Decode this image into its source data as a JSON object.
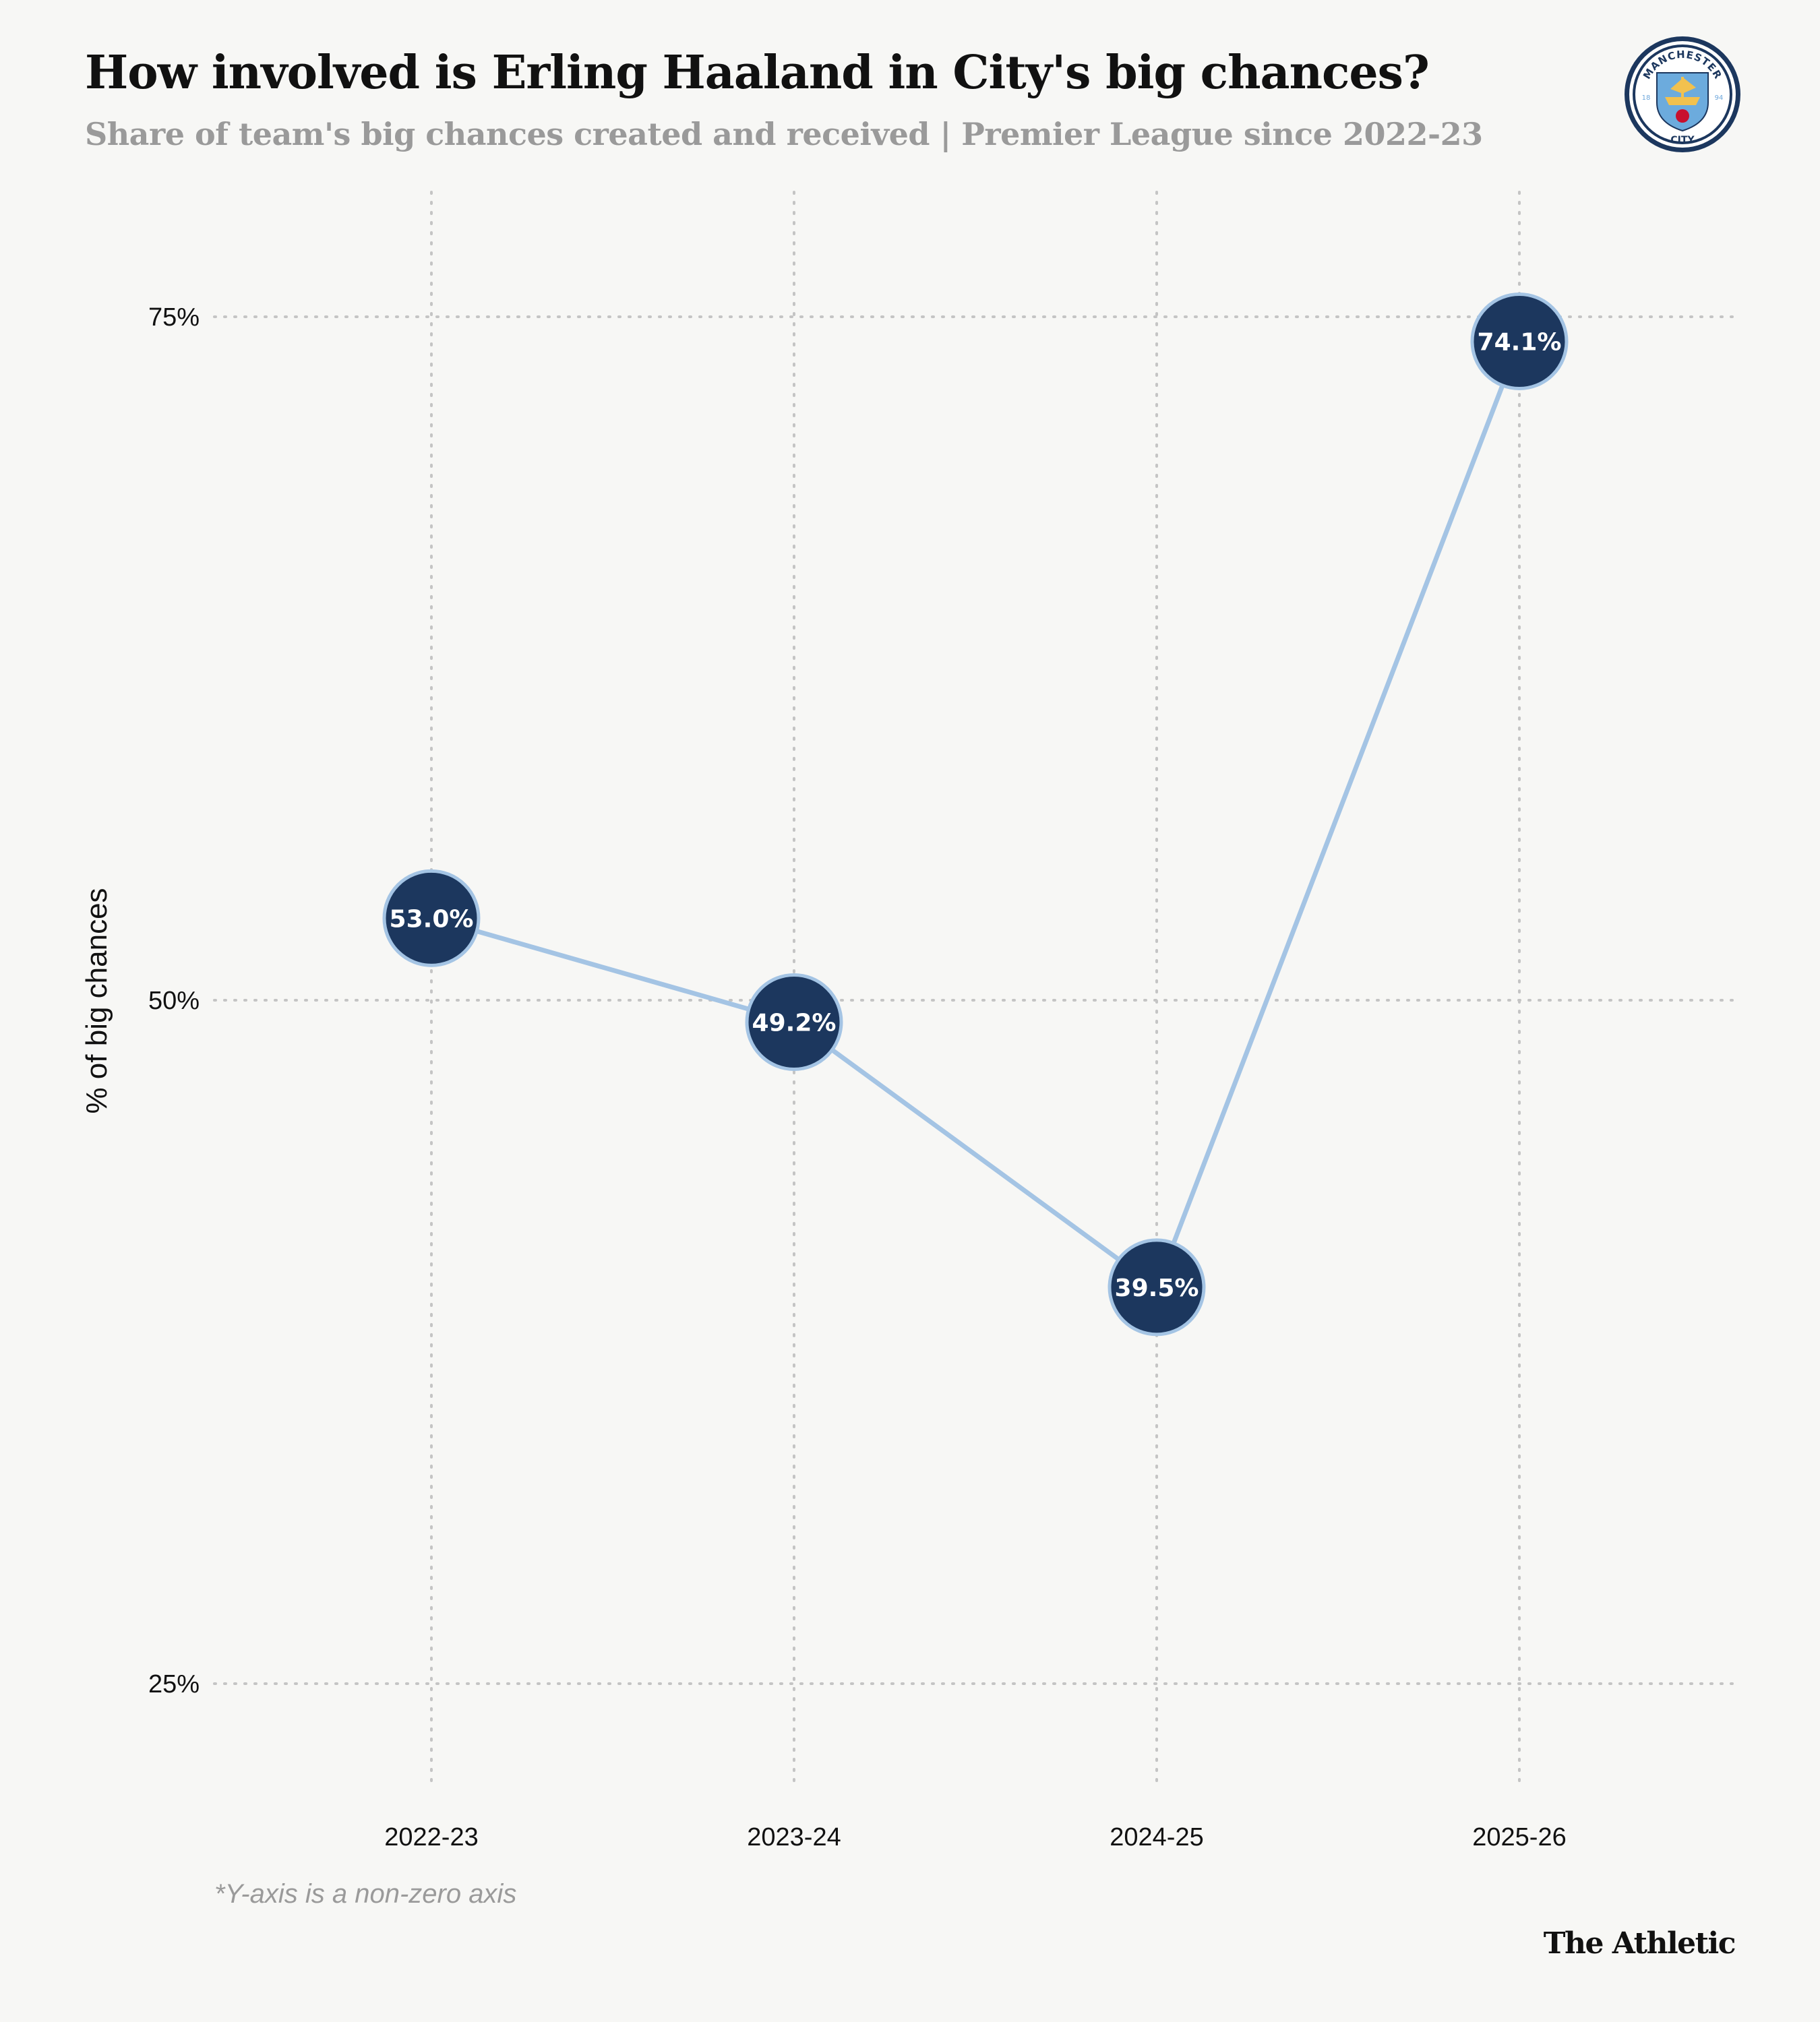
{
  "colors": {
    "background": "#f7f7f5",
    "line": "#a4c4e4",
    "marker_fill": "#1c375e",
    "marker_stroke": "#a4c4e4",
    "grid": "#c4c4c4"
  },
  "header": {
    "title": "How involved is Erling Haaland in City's big chances?",
    "subtitle": "Share of team's big chances created and received | Premier League since 2022-23"
  },
  "logo": {
    "icon": "manchester-city-crest",
    "text_top": "MANCHESTER",
    "text_bottom": "CITY",
    "year_left": "18",
    "year_right": "94"
  },
  "chart_data": {
    "type": "line",
    "title": "How involved is Erling Haaland in City's big chances?",
    "subtitle": "Share of team's big chances created and received | Premier League since 2022-23",
    "categories": [
      "2022-23",
      "2023-24",
      "2024-25",
      "2025-26"
    ],
    "series": [
      {
        "name": "% of big chances",
        "values": [
          53.0,
          49.2,
          39.5,
          74.1
        ],
        "labels": [
          "53.0%",
          "49.2%",
          "39.5%",
          "74.1%"
        ]
      }
    ],
    "xlabel": "",
    "ylabel": "% of big chances",
    "ylim": [
      20,
      80
    ],
    "yticks": [
      25,
      50,
      75
    ],
    "ytick_labels": [
      "25%",
      "50%",
      "75%"
    ],
    "grid": true,
    "note": "*Y-axis is a non-zero axis"
  },
  "footer": {
    "footnote": "*Y-axis is a non-zero axis",
    "brand": "The Athletic"
  }
}
